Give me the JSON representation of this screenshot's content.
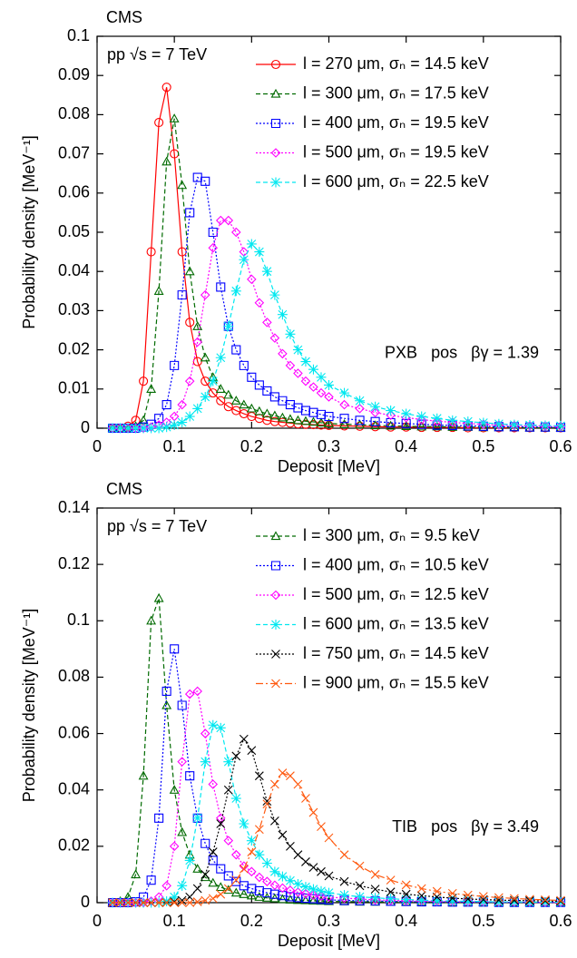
{
  "chart_data": [
    {
      "type": "line",
      "experiment": "CMS",
      "energy_label": "pp √s = 7 TeV",
      "detector_label": "PXB   pos   βγ = 1.39",
      "x_label": "Deposit [MeV]",
      "y_label": "Probability density [MeV⁻¹]",
      "xlim": [
        0,
        0.6
      ],
      "xticks": [
        0,
        0.1,
        0.2,
        0.3,
        0.4,
        0.5,
        0.6
      ],
      "ylim": [
        0,
        0.1
      ],
      "yticks": [
        0,
        0.01,
        0.02,
        0.03,
        0.04,
        0.05,
        0.06,
        0.07,
        0.08,
        0.09,
        0.1
      ],
      "grid": false,
      "legend": "upper right",
      "x": [
        0.02,
        0.03,
        0.04,
        0.05,
        0.06,
        0.07,
        0.08,
        0.09,
        0.1,
        0.11,
        0.12,
        0.13,
        0.14,
        0.15,
        0.16,
        0.17,
        0.18,
        0.19,
        0.2,
        0.21,
        0.22,
        0.23,
        0.24,
        0.25,
        0.26,
        0.27,
        0.28,
        0.29,
        0.3,
        0.32,
        0.34,
        0.36,
        0.38,
        0.4,
        0.42,
        0.44,
        0.46,
        0.48,
        0.5,
        0.52,
        0.54,
        0.56,
        0.58,
        0.6
      ],
      "series": [
        {
          "name": "l = 270 μm, σₙ = 14.5 keV",
          "color": "#ff0000",
          "marker": "circle",
          "line_style": "solid",
          "values": [
            0,
            0,
            0.0005,
            0.002,
            0.012,
            0.045,
            0.078,
            0.087,
            0.07,
            0.045,
            0.027,
            0.017,
            0.012,
            0.009,
            0.007,
            0.0055,
            0.0045,
            0.0037,
            0.003,
            0.0025,
            0.002,
            0.0017,
            0.0015,
            0.0013,
            0.0011,
            0.001,
            0.0009,
            0.0008,
            0.0007,
            0.0006,
            0.0005,
            0.0004,
            0.0003,
            0.0003,
            0.0002,
            0.0002,
            0.0002,
            0.0001,
            0.0001,
            0.0001,
            0.0001,
            0.0001,
            0.0001,
            0.0001
          ]
        },
        {
          "name": "l = 300 μm, σₙ = 17.5 keV",
          "color": "#006a00",
          "marker": "triangle",
          "line_style": "dashed",
          "values": [
            0,
            0,
            0,
            0.0005,
            0.002,
            0.01,
            0.035,
            0.068,
            0.079,
            0.062,
            0.04,
            0.026,
            0.018,
            0.013,
            0.01,
            0.0085,
            0.007,
            0.006,
            0.005,
            0.0043,
            0.0037,
            0.0032,
            0.0027,
            0.0023,
            0.002,
            0.0018,
            0.0016,
            0.0014,
            0.0012,
            0.001,
            0.0009,
            0.0007,
            0.0006,
            0.0005,
            0.0004,
            0.0004,
            0.0003,
            0.0003,
            0.0002,
            0.0002,
            0.0002,
            0.0001,
            0.0001,
            0.0001
          ]
        },
        {
          "name": "l = 400 μm, σₙ = 19.5 keV",
          "color": "#0000ff",
          "marker": "square",
          "line_style": "dotted",
          "values": [
            0,
            0,
            0,
            0,
            0.0003,
            0.001,
            0.0025,
            0.006,
            0.016,
            0.034,
            0.055,
            0.064,
            0.063,
            0.05,
            0.036,
            0.026,
            0.02,
            0.016,
            0.013,
            0.011,
            0.0095,
            0.008,
            0.007,
            0.006,
            0.0052,
            0.0045,
            0.004,
            0.0035,
            0.003,
            0.0025,
            0.002,
            0.0017,
            0.0014,
            0.0012,
            0.001,
            0.0008,
            0.0007,
            0.0006,
            0.0005,
            0.0004,
            0.0004,
            0.0003,
            0.0003,
            0.0002
          ]
        },
        {
          "name": "l = 500 μm, σₙ = 19.5 keV",
          "color": "#ff00ff",
          "marker": "diamond",
          "line_style": "dotted",
          "values": [
            0,
            0,
            0,
            0,
            0,
            0.0003,
            0.0008,
            0.0015,
            0.003,
            0.006,
            0.012,
            0.022,
            0.034,
            0.046,
            0.053,
            0.053,
            0.05,
            0.045,
            0.038,
            0.032,
            0.027,
            0.023,
            0.019,
            0.016,
            0.014,
            0.012,
            0.0105,
            0.009,
            0.008,
            0.006,
            0.005,
            0.004,
            0.0033,
            0.0027,
            0.0022,
            0.0018,
            0.0015,
            0.0012,
            0.001,
            0.0008,
            0.0007,
            0.0006,
            0.0005,
            0.0004
          ]
        },
        {
          "name": "l = 600 μm, σₙ = 22.5 keV",
          "color": "#00e8f0",
          "marker": "star",
          "line_style": "dashed",
          "values": [
            0,
            0,
            0,
            0,
            0,
            0,
            0,
            0.0003,
            0.0008,
            0.0015,
            0.003,
            0.005,
            0.008,
            0.012,
            0.018,
            0.026,
            0.035,
            0.043,
            0.047,
            0.045,
            0.04,
            0.034,
            0.029,
            0.024,
            0.02,
            0.017,
            0.015,
            0.013,
            0.011,
            0.009,
            0.007,
            0.0055,
            0.0045,
            0.0037,
            0.003,
            0.0025,
            0.002,
            0.0017,
            0.0014,
            0.0011,
            0.0009,
            0.0008,
            0.0007,
            0.0006
          ]
        }
      ]
    },
    {
      "type": "line",
      "experiment": "CMS",
      "energy_label": "pp √s = 7 TeV",
      "detector_label": "TIB   pos   βγ = 3.49",
      "x_label": "Deposit [MeV]",
      "y_label": "Probability density [MeV⁻¹]",
      "xlim": [
        0,
        0.6
      ],
      "xticks": [
        0,
        0.1,
        0.2,
        0.3,
        0.4,
        0.5,
        0.6
      ],
      "ylim": [
        0,
        0.14
      ],
      "yticks": [
        0,
        0.02,
        0.04,
        0.06,
        0.08,
        0.1,
        0.12,
        0.14
      ],
      "grid": false,
      "legend": "upper right",
      "x": [
        0.02,
        0.03,
        0.04,
        0.05,
        0.06,
        0.07,
        0.08,
        0.09,
        0.1,
        0.11,
        0.12,
        0.13,
        0.14,
        0.15,
        0.16,
        0.17,
        0.18,
        0.19,
        0.2,
        0.21,
        0.22,
        0.23,
        0.24,
        0.25,
        0.26,
        0.27,
        0.28,
        0.29,
        0.3,
        0.32,
        0.34,
        0.36,
        0.38,
        0.4,
        0.42,
        0.44,
        0.46,
        0.48,
        0.5,
        0.52,
        0.54,
        0.56,
        0.58,
        0.6
      ],
      "series": [
        {
          "name": "l = 300 μm, σₙ = 9.5 keV",
          "color": "#006a00",
          "marker": "triangle",
          "line_style": "dashed",
          "values": [
            0,
            0.0005,
            0.002,
            0.01,
            0.045,
            0.1,
            0.108,
            0.07,
            0.04,
            0.025,
            0.017,
            0.012,
            0.009,
            0.007,
            0.0055,
            0.0045,
            0.0035,
            0.003,
            0.0025,
            0.002,
            0.0017,
            0.0015,
            0.0012,
            0.001,
            0.0009,
            0.0008,
            0.0007,
            0.0006,
            0.0005,
            0.0004,
            0.0003,
            0.0003,
            0.0002,
            0.0002,
            0.0002,
            0.0001,
            0.0001,
            0.0001,
            0.0001,
            0.0001,
            0.0001,
            0.0001,
            0.0001,
            0.0001
          ]
        },
        {
          "name": "l = 400 μm, σₙ = 10.5 keV",
          "color": "#0000ff",
          "marker": "square",
          "line_style": "dotted",
          "values": [
            0,
            0,
            0,
            0.0003,
            0.002,
            0.008,
            0.03,
            0.075,
            0.09,
            0.07,
            0.045,
            0.03,
            0.021,
            0.015,
            0.012,
            0.0095,
            0.0075,
            0.006,
            0.005,
            0.0042,
            0.0035,
            0.003,
            0.0025,
            0.0021,
            0.0018,
            0.0016,
            0.0014,
            0.0012,
            0.001,
            0.0008,
            0.0007,
            0.0006,
            0.0005,
            0.0004,
            0.0003,
            0.0003,
            0.0002,
            0.0002,
            0.0002,
            0.0001,
            0.0001,
            0.0001,
            0.0001,
            0.0001
          ]
        },
        {
          "name": "l = 500 μm, σₙ = 12.5 keV",
          "color": "#ff00ff",
          "marker": "diamond",
          "line_style": "dotted",
          "values": [
            0,
            0,
            0,
            0,
            0,
            0.0005,
            0.002,
            0.006,
            0.02,
            0.05,
            0.074,
            0.075,
            0.06,
            0.042,
            0.03,
            0.022,
            0.017,
            0.013,
            0.011,
            0.009,
            0.0075,
            0.0062,
            0.0052,
            0.0044,
            0.0037,
            0.0032,
            0.0027,
            0.0023,
            0.002,
            0.0016,
            0.0013,
            0.001,
            0.0008,
            0.0007,
            0.0006,
            0.0005,
            0.0004,
            0.0003,
            0.0003,
            0.0002,
            0.0002,
            0.0002,
            0.0001,
            0.0001
          ]
        },
        {
          "name": "l = 600 μm, σₙ = 13.5 keV",
          "color": "#00e8f0",
          "marker": "star",
          "line_style": "dashed",
          "values": [
            0,
            0,
            0,
            0,
            0,
            0,
            0,
            0.0005,
            0.002,
            0.006,
            0.015,
            0.03,
            0.05,
            0.063,
            0.062,
            0.05,
            0.037,
            0.028,
            0.022,
            0.017,
            0.014,
            0.011,
            0.0093,
            0.0078,
            0.0066,
            0.0056,
            0.0048,
            0.0041,
            0.0035,
            0.0027,
            0.0021,
            0.0017,
            0.0014,
            0.0011,
            0.0009,
            0.0007,
            0.0006,
            0.0005,
            0.0004,
            0.0003,
            0.0003,
            0.0002,
            0.0002,
            0.0002
          ]
        },
        {
          "name": "l = 750 μm, σₙ = 14.5 keV",
          "color": "#000000",
          "marker": "x",
          "line_style": "dotted",
          "values": [
            0,
            0,
            0,
            0,
            0,
            0,
            0,
            0,
            0.0003,
            0.0008,
            0.002,
            0.005,
            0.01,
            0.018,
            0.028,
            0.04,
            0.052,
            0.058,
            0.054,
            0.045,
            0.036,
            0.029,
            0.024,
            0.02,
            0.017,
            0.0145,
            0.0125,
            0.011,
            0.0095,
            0.0075,
            0.006,
            0.0048,
            0.0038,
            0.003,
            0.0025,
            0.002,
            0.0016,
            0.0013,
            0.0011,
            0.0009,
            0.0008,
            0.0007,
            0.0006,
            0.0005
          ]
        },
        {
          "name": "l = 900 μm, σₙ = 15.5 keV",
          "color": "#ff5a10",
          "marker": "x",
          "line_style": "dashdot",
          "values": [
            0,
            0,
            0,
            0,
            0,
            0,
            0,
            0,
            0,
            0,
            0,
            0.0003,
            0.0008,
            0.0015,
            0.003,
            0.005,
            0.008,
            0.012,
            0.018,
            0.026,
            0.035,
            0.042,
            0.046,
            0.045,
            0.042,
            0.037,
            0.032,
            0.027,
            0.023,
            0.017,
            0.013,
            0.01,
            0.008,
            0.0063,
            0.005,
            0.004,
            0.0033,
            0.0027,
            0.0022,
            0.0018,
            0.0015,
            0.0012,
            0.001,
            0.0008
          ]
        }
      ]
    }
  ]
}
